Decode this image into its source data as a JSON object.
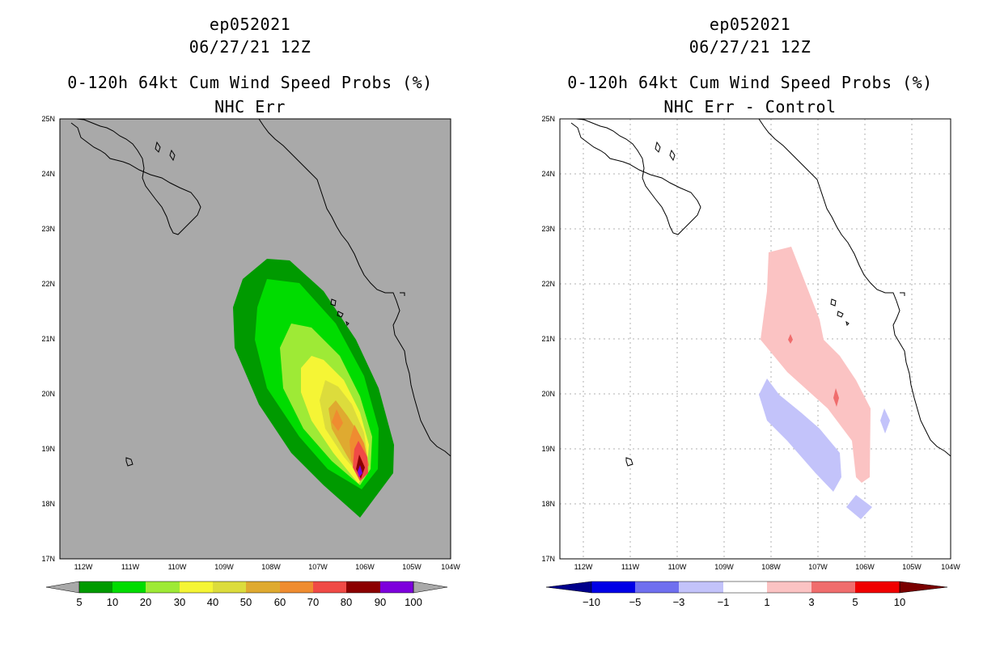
{
  "left_panel": {
    "title_line1": "ep052021",
    "title_line2": "06/27/21 12Z",
    "title_line3": "0-120h 64kt Cum Wind Speed Probs (%)",
    "title_line4": "NHC Err",
    "lat_labels": [
      "25N",
      "24N",
      "23N",
      "22N",
      "21N",
      "20N",
      "19N",
      "18N",
      "17N"
    ],
    "lon_labels": [
      "112W",
      "111W",
      "110W",
      "109W",
      "108W",
      "107W",
      "106W",
      "105W",
      "104W"
    ],
    "colorbar_labels": [
      "5",
      "10",
      "20",
      "30",
      "40",
      "50",
      "60",
      "70",
      "80",
      "90",
      "100"
    ],
    "colorbar_colors": [
      "#009a00",
      "#00dc00",
      "#9eea36",
      "#f5f535",
      "#dcdc3c",
      "#dfaa30",
      "#ef8c30",
      "#f04a46",
      "#8b0000",
      "#7d00dc"
    ],
    "background_color": "#a9a9a9"
  },
  "right_panel": {
    "title_line1": "ep052021",
    "title_line2": "06/27/21 12Z",
    "title_line3": "0-120h 64kt Cum Wind Speed Probs (%)",
    "title_line4": "NHC Err - Control",
    "lat_labels": [
      "25N",
      "24N",
      "23N",
      "22N",
      "21N",
      "20N",
      "19N",
      "18N",
      "17N"
    ],
    "lon_labels": [
      "112W",
      "111W",
      "110W",
      "109W",
      "108W",
      "107W",
      "106W",
      "105W",
      "104W"
    ],
    "colorbar_labels": [
      "−10",
      "−5",
      "−3",
      "−1",
      "1",
      "3",
      "5",
      "10"
    ],
    "colorbar_colors": [
      "#0000e6",
      "#6f6fef",
      "#c3c3fa",
      "#ffffff",
      "#fbc3c3",
      "#f06d6d",
      "#f00000"
    ],
    "background_color": "#ffffff"
  }
}
